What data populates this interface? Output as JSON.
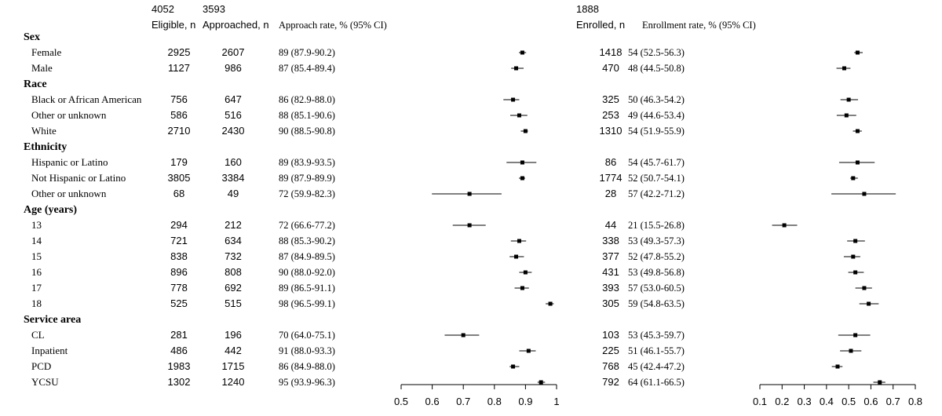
{
  "totals": {
    "eligible": "4052",
    "approached": "3593",
    "enrolled": "1888"
  },
  "headers": {
    "eligible": "Eligible, n",
    "approached": "Approached, n",
    "approach_rate": "Approach rate, % (95% CI)",
    "enrolled": "Enrolled, n",
    "enrollment_rate": "Enrollment rate, % (95% CI)"
  },
  "chart_data": [
    {
      "type": "scatter",
      "subtype": "forest-plot",
      "title": "",
      "xlabel": "",
      "ylabel": "",
      "xlim": [
        0.5,
        1.0
      ],
      "xticks": [
        "0.5",
        "0.6",
        "0.7",
        "0.8",
        "0.9",
        "1"
      ],
      "xtick_values": [
        0.5,
        0.6,
        0.7,
        0.8,
        0.9,
        1.0
      ],
      "grid": false,
      "legend": "none",
      "rows": [
        {
          "label": "Female",
          "value": 0.89,
          "lo": 0.879,
          "hi": 0.902
        },
        {
          "label": "Male",
          "value": 0.87,
          "lo": 0.854,
          "hi": 0.894
        },
        {
          "label": "Black or African American",
          "value": 0.86,
          "lo": 0.829,
          "hi": 0.88
        },
        {
          "label": "Other or unknown",
          "value": 0.88,
          "lo": 0.851,
          "hi": 0.906
        },
        {
          "label": "White",
          "value": 0.9,
          "lo": 0.885,
          "hi": 0.908
        },
        {
          "label": "Hispanic or Latino",
          "value": 0.89,
          "lo": 0.839,
          "hi": 0.935
        },
        {
          "label": "Not Hispanic or Latino",
          "value": 0.89,
          "lo": 0.879,
          "hi": 0.899
        },
        {
          "label": "Other or unknown",
          "value": 0.72,
          "lo": 0.599,
          "hi": 0.823
        },
        {
          "label": "13",
          "value": 0.72,
          "lo": 0.666,
          "hi": 0.772
        },
        {
          "label": "14",
          "value": 0.88,
          "lo": 0.853,
          "hi": 0.902
        },
        {
          "label": "15",
          "value": 0.87,
          "lo": 0.849,
          "hi": 0.895
        },
        {
          "label": "16",
          "value": 0.9,
          "lo": 0.88,
          "hi": 0.92
        },
        {
          "label": "17",
          "value": 0.89,
          "lo": 0.865,
          "hi": 0.911
        },
        {
          "label": "18",
          "value": 0.98,
          "lo": 0.965,
          "hi": 0.991
        },
        {
          "label": "CL",
          "value": 0.7,
          "lo": 0.64,
          "hi": 0.751
        },
        {
          "label": "Inpatient",
          "value": 0.91,
          "lo": 0.88,
          "hi": 0.933
        },
        {
          "label": "PCD",
          "value": 0.86,
          "lo": 0.849,
          "hi": 0.88
        },
        {
          "label": "YCSU",
          "value": 0.95,
          "lo": 0.939,
          "hi": 0.963
        }
      ]
    },
    {
      "type": "scatter",
      "subtype": "forest-plot",
      "title": "",
      "xlabel": "",
      "ylabel": "",
      "xlim": [
        0.1,
        0.8
      ],
      "xticks": [
        "0.1",
        "0.2",
        "0.3",
        "0.4",
        "0.5",
        "0.6",
        "0.7",
        "0.8"
      ],
      "xtick_values": [
        0.1,
        0.2,
        0.3,
        0.4,
        0.5,
        0.6,
        0.7,
        0.8
      ],
      "grid": false,
      "legend": "none",
      "rows": [
        {
          "label": "Female",
          "value": 0.54,
          "lo": 0.525,
          "hi": 0.563
        },
        {
          "label": "Male",
          "value": 0.48,
          "lo": 0.445,
          "hi": 0.508
        },
        {
          "label": "Black or African American",
          "value": 0.5,
          "lo": 0.463,
          "hi": 0.542
        },
        {
          "label": "Other or unknown",
          "value": 0.49,
          "lo": 0.446,
          "hi": 0.534
        },
        {
          "label": "White",
          "value": 0.54,
          "lo": 0.519,
          "hi": 0.559
        },
        {
          "label": "Hispanic or Latino",
          "value": 0.54,
          "lo": 0.457,
          "hi": 0.617
        },
        {
          "label": "Not Hispanic or Latino",
          "value": 0.52,
          "lo": 0.507,
          "hi": 0.541
        },
        {
          "label": "Other or unknown",
          "value": 0.57,
          "lo": 0.422,
          "hi": 0.712
        },
        {
          "label": "13",
          "value": 0.21,
          "lo": 0.155,
          "hi": 0.268
        },
        {
          "label": "14",
          "value": 0.53,
          "lo": 0.493,
          "hi": 0.573
        },
        {
          "label": "15",
          "value": 0.52,
          "lo": 0.478,
          "hi": 0.552
        },
        {
          "label": "16",
          "value": 0.53,
          "lo": 0.498,
          "hi": 0.568
        },
        {
          "label": "17",
          "value": 0.57,
          "lo": 0.53,
          "hi": 0.605
        },
        {
          "label": "18",
          "value": 0.59,
          "lo": 0.548,
          "hi": 0.635
        },
        {
          "label": "CL",
          "value": 0.53,
          "lo": 0.453,
          "hi": 0.597
        },
        {
          "label": "Inpatient",
          "value": 0.51,
          "lo": 0.461,
          "hi": 0.557
        },
        {
          "label": "PCD",
          "value": 0.45,
          "lo": 0.424,
          "hi": 0.472
        },
        {
          "label": "YCSU",
          "value": 0.64,
          "lo": 0.611,
          "hi": 0.665
        }
      ]
    }
  ],
  "rows": [
    {
      "type": "group",
      "label": "Sex"
    },
    {
      "type": "row",
      "label": "Female",
      "eligible": "2925",
      "approached": "2607",
      "approach_rate": "89 (87.9-90.2)",
      "enrolled": "1418",
      "enrollment_rate": "54 (52.5-56.3)"
    },
    {
      "type": "row",
      "label": "Male",
      "eligible": "1127",
      "approached": "986",
      "approach_rate": "87 (85.4-89.4)",
      "enrolled": "470",
      "enrollment_rate": "48 (44.5-50.8)"
    },
    {
      "type": "group",
      "label": "Race"
    },
    {
      "type": "row",
      "label": "Black or African American",
      "eligible": "756",
      "approached": "647",
      "approach_rate": "86 (82.9-88.0)",
      "enrolled": "325",
      "enrollment_rate": "50 (46.3-54.2)"
    },
    {
      "type": "row",
      "label": "Other or unknown",
      "eligible": "586",
      "approached": "516",
      "approach_rate": "88 (85.1-90.6)",
      "enrolled": "253",
      "enrollment_rate": "49 (44.6-53.4)"
    },
    {
      "type": "row",
      "label": "White",
      "eligible": "2710",
      "approached": "2430",
      "approach_rate": "90 (88.5-90.8)",
      "enrolled": "1310",
      "enrollment_rate": "54 (51.9-55.9)"
    },
    {
      "type": "group",
      "label": "Ethnicity"
    },
    {
      "type": "row",
      "label": "Hispanic or Latino",
      "eligible": "179",
      "approached": "160",
      "approach_rate": "89 (83.9-93.5)",
      "enrolled": "86",
      "enrollment_rate": "54 (45.7-61.7)"
    },
    {
      "type": "row",
      "label": "Not Hispanic or Latino",
      "eligible": "3805",
      "approached": "3384",
      "approach_rate": "89 (87.9-89.9)",
      "enrolled": "1774",
      "enrollment_rate": "52 (50.7-54.1)"
    },
    {
      "type": "row",
      "label": "Other or unknown",
      "eligible": "68",
      "approached": "49",
      "approach_rate": "72 (59.9-82.3)",
      "enrolled": "28",
      "enrollment_rate": "57 (42.2-71.2)"
    },
    {
      "type": "group",
      "label": "Age (years)"
    },
    {
      "type": "row",
      "label": "13",
      "eligible": "294",
      "approached": "212",
      "approach_rate": "72 (66.6-77.2)",
      "enrolled": "44",
      "enrollment_rate": "21 (15.5-26.8)"
    },
    {
      "type": "row",
      "label": "14",
      "eligible": "721",
      "approached": "634",
      "approach_rate": "88 (85.3-90.2)",
      "enrolled": "338",
      "enrollment_rate": "53 (49.3-57.3)"
    },
    {
      "type": "row",
      "label": "15",
      "eligible": "838",
      "approached": "732",
      "approach_rate": "87 (84.9-89.5)",
      "enrolled": "377",
      "enrollment_rate": "52 (47.8-55.2)"
    },
    {
      "type": "row",
      "label": "16",
      "eligible": "896",
      "approached": "808",
      "approach_rate": "90 (88.0-92.0)",
      "enrolled": "431",
      "enrollment_rate": "53 (49.8-56.8)"
    },
    {
      "type": "row",
      "label": "17",
      "eligible": "778",
      "approached": "692",
      "approach_rate": "89 (86.5-91.1)",
      "enrolled": "393",
      "enrollment_rate": "57 (53.0-60.5)"
    },
    {
      "type": "row",
      "label": "18",
      "eligible": "525",
      "approached": "515",
      "approach_rate": "98 (96.5-99.1)",
      "enrolled": "305",
      "enrollment_rate": "59 (54.8-63.5)"
    },
    {
      "type": "group",
      "label": "Service area"
    },
    {
      "type": "row",
      "label": "CL",
      "eligible": "281",
      "approached": "196",
      "approach_rate": "70 (64.0-75.1)",
      "enrolled": "103",
      "enrollment_rate": "53 (45.3-59.7)"
    },
    {
      "type": "row",
      "label": "Inpatient",
      "eligible": "486",
      "approached": "442",
      "approach_rate": "91 (88.0-93.3)",
      "enrolled": "225",
      "enrollment_rate": "51 (46.1-55.7)"
    },
    {
      "type": "row",
      "label": "PCD",
      "eligible": "1983",
      "approached": "1715",
      "approach_rate": "86 (84.9-88.0)",
      "enrolled": "768",
      "enrollment_rate": "45 (42.4-47.2)"
    },
    {
      "type": "row",
      "label": "YCSU",
      "eligible": "1302",
      "approached": "1240",
      "approach_rate": "95 (93.9-96.3)",
      "enrolled": "792",
      "enrollment_rate": "64 (61.1-66.5)"
    }
  ]
}
